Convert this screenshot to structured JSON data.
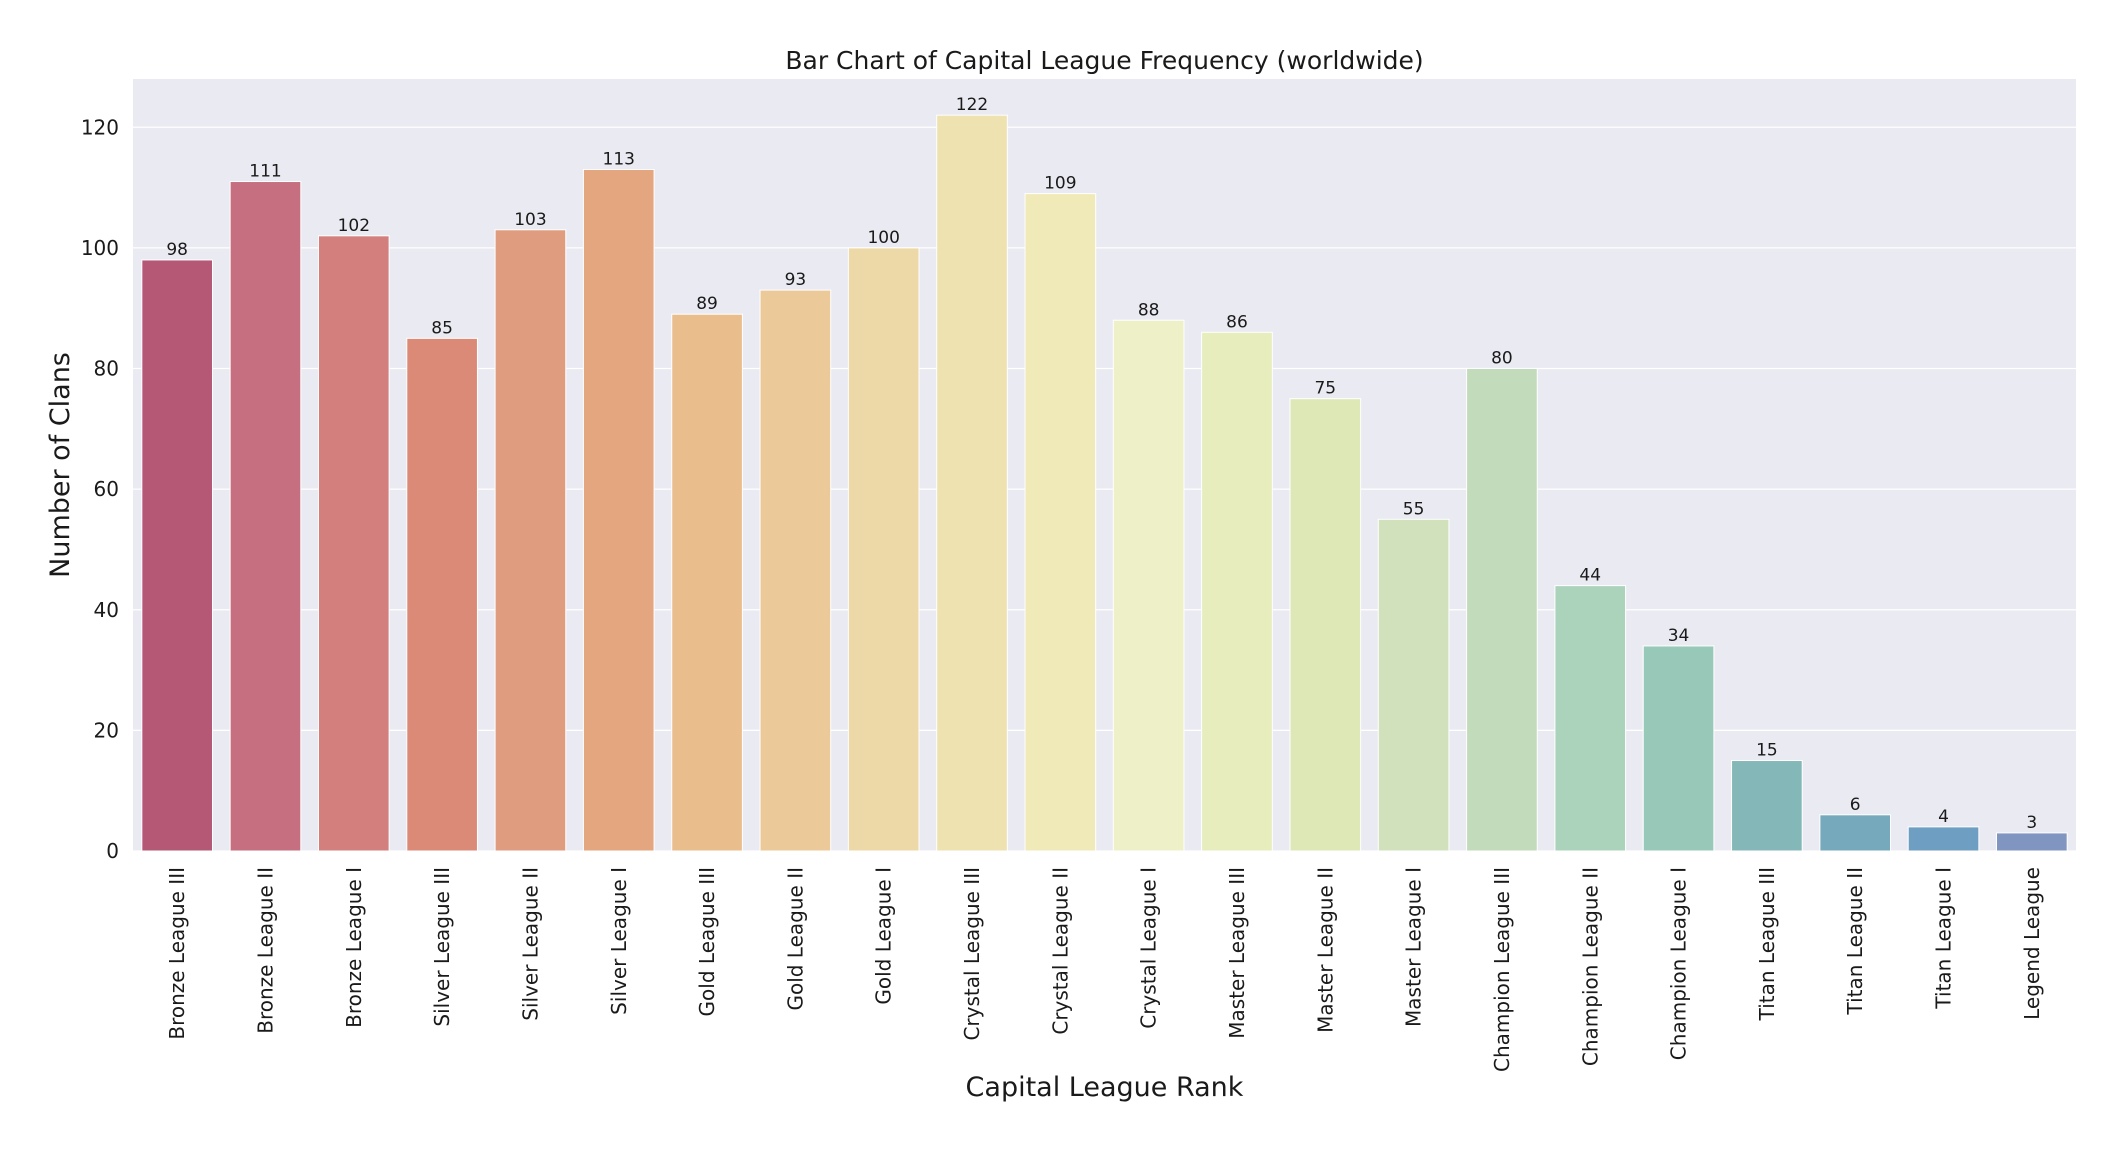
{
  "chart_data": {
    "type": "bar",
    "title": "Bar Chart of Capital League Frequency (worldwide)",
    "xlabel": "Capital League Rank",
    "ylabel": "Number of Clans",
    "ylim": [
      0,
      128
    ],
    "yticks": [
      0,
      20,
      40,
      60,
      80,
      100,
      120
    ],
    "grid": true,
    "legend": "none",
    "data_labels": true,
    "plot_background": "#eaeaf2",
    "categories": [
      "Bronze League III",
      "Bronze League II",
      "Bronze League I",
      "Silver League III",
      "Silver League II",
      "Silver League I",
      "Gold League III",
      "Gold League II",
      "Gold League I",
      "Crystal League III",
      "Crystal League II",
      "Crystal League I",
      "Master League III",
      "Master League II",
      "Master League I",
      "Champion League III",
      "Champion League II",
      "Champion League I",
      "Titan League III",
      "Titan League II",
      "Titan League I",
      "Legend League"
    ],
    "values": [
      98,
      111,
      102,
      85,
      103,
      113,
      89,
      93,
      100,
      122,
      109,
      88,
      86,
      75,
      55,
      80,
      44,
      34,
      15,
      6,
      4,
      3
    ],
    "colors": [
      "#b45876",
      "#c56f81",
      "#d27f7e",
      "#dc8a78",
      "#e09c7f",
      "#e4a67e",
      "#eabd8d",
      "#ecc999",
      "#ecd9a7",
      "#efe2b1",
      "#f0eab8",
      "#eef0c7",
      "#e7edbd",
      "#dee8b7",
      "#d1e1bc",
      "#c2dbbb",
      "#abd3bb",
      "#98c8b8",
      "#84b8b8",
      "#76a9bc",
      "#6e9ec1",
      "#8095c0"
    ]
  }
}
